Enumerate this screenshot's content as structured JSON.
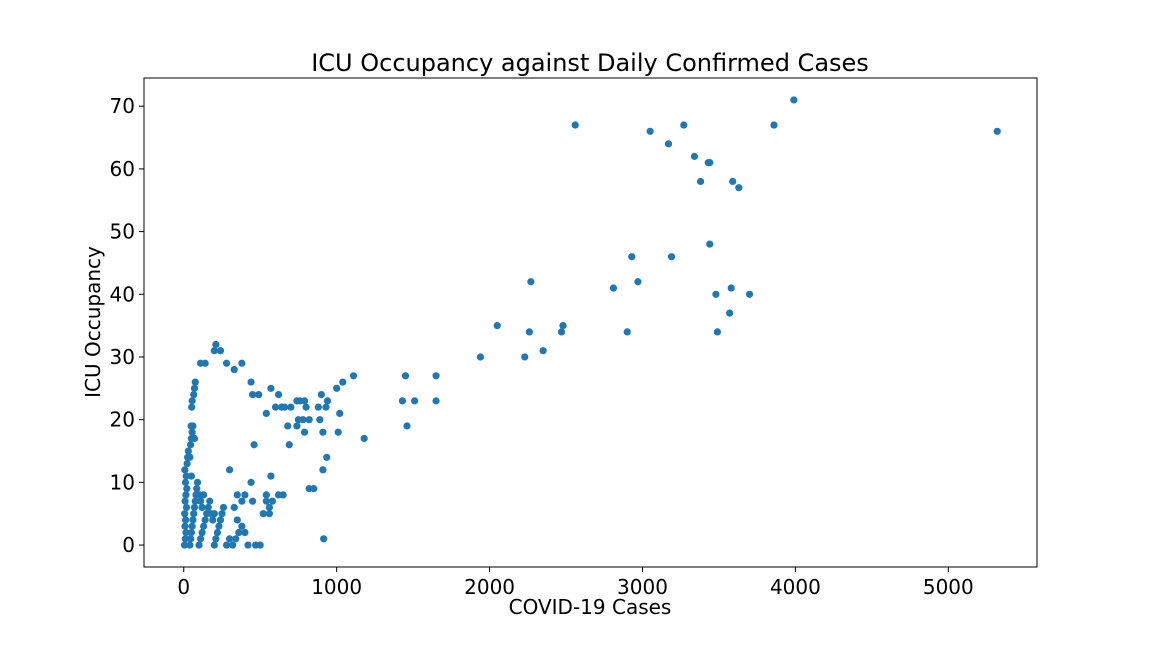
{
  "chart_data": {
    "type": "scatter",
    "title": "ICU Occupancy against Daily Confirmed Cases",
    "xlabel": "COVID-19 Cases",
    "ylabel": "ICU Occupancy",
    "xlim": [
      -260,
      5580
    ],
    "ylim": [
      -3.5,
      74.5
    ],
    "xticks": [
      0,
      1000,
      2000,
      3000,
      4000,
      5000
    ],
    "yticks": [
      0,
      10,
      20,
      30,
      40,
      50,
      60,
      70
    ],
    "grid": false,
    "color": "#1f77b4",
    "points": [
      [
        5,
        0
      ],
      [
        10,
        1
      ],
      [
        15,
        2
      ],
      [
        8,
        3
      ],
      [
        12,
        4
      ],
      [
        6,
        5
      ],
      [
        18,
        6
      ],
      [
        9,
        7
      ],
      [
        14,
        8
      ],
      [
        20,
        9
      ],
      [
        11,
        10
      ],
      [
        16,
        11
      ],
      [
        7,
        12
      ],
      [
        22,
        13
      ],
      [
        25,
        14
      ],
      [
        30,
        15
      ],
      [
        40,
        14
      ],
      [
        45,
        16
      ],
      [
        50,
        17
      ],
      [
        55,
        18
      ],
      [
        48,
        19
      ],
      [
        60,
        19
      ],
      [
        70,
        17
      ],
      [
        52,
        22
      ],
      [
        55,
        23
      ],
      [
        65,
        24
      ],
      [
        70,
        25
      ],
      [
        75,
        26
      ],
      [
        40,
        0
      ],
      [
        45,
        1
      ],
      [
        50,
        2
      ],
      [
        55,
        3
      ],
      [
        60,
        4
      ],
      [
        65,
        5
      ],
      [
        70,
        6
      ],
      [
        75,
        7
      ],
      [
        80,
        8
      ],
      [
        85,
        9
      ],
      [
        90,
        10
      ],
      [
        50,
        11
      ],
      [
        100,
        0
      ],
      [
        110,
        1
      ],
      [
        120,
        2
      ],
      [
        130,
        3
      ],
      [
        140,
        4
      ],
      [
        150,
        5
      ],
      [
        160,
        6
      ],
      [
        170,
        7
      ],
      [
        100,
        8
      ],
      [
        110,
        7
      ],
      [
        120,
        6
      ],
      [
        130,
        8
      ],
      [
        200,
        0
      ],
      [
        210,
        1
      ],
      [
        220,
        2
      ],
      [
        230,
        3
      ],
      [
        240,
        4
      ],
      [
        250,
        5
      ],
      [
        260,
        6
      ],
      [
        200,
        5
      ],
      [
        180,
        5
      ],
      [
        190,
        4
      ],
      [
        280,
        0
      ],
      [
        300,
        1
      ],
      [
        320,
        0
      ],
      [
        340,
        1
      ],
      [
        360,
        2
      ],
      [
        330,
        6
      ],
      [
        350,
        4
      ],
      [
        380,
        3
      ],
      [
        400,
        2
      ],
      [
        420,
        0
      ],
      [
        350,
        8
      ],
      [
        380,
        7
      ],
      [
        400,
        8
      ],
      [
        450,
        7
      ],
      [
        470,
        0
      ],
      [
        500,
        0
      ],
      [
        520,
        5
      ],
      [
        540,
        8
      ],
      [
        560,
        6
      ],
      [
        580,
        7
      ],
      [
        620,
        8
      ],
      [
        650,
        8
      ],
      [
        540,
        7
      ],
      [
        560,
        5
      ],
      [
        300,
        12
      ],
      [
        440,
        10
      ],
      [
        570,
        11
      ],
      [
        440,
        26
      ],
      [
        450,
        24
      ],
      [
        490,
        24
      ],
      [
        540,
        21
      ],
      [
        570,
        25
      ],
      [
        600,
        22
      ],
      [
        620,
        24
      ],
      [
        640,
        22
      ],
      [
        660,
        22
      ],
      [
        700,
        22
      ],
      [
        460,
        16
      ],
      [
        690,
        16
      ],
      [
        680,
        19
      ],
      [
        740,
        19
      ],
      [
        750,
        20
      ],
      [
        780,
        20
      ],
      [
        790,
        18
      ],
      [
        800,
        22
      ],
      [
        740,
        23
      ],
      [
        760,
        23
      ],
      [
        790,
        23
      ],
      [
        820,
        20
      ],
      [
        820,
        9
      ],
      [
        850,
        9
      ],
      [
        880,
        22
      ],
      [
        890,
        20
      ],
      [
        900,
        24
      ],
      [
        910,
        18
      ],
      [
        930,
        22
      ],
      [
        940,
        23
      ],
      [
        935,
        14
      ],
      [
        910,
        12
      ],
      [
        915,
        1
      ],
      [
        1000,
        25
      ],
      [
        1010,
        18
      ],
      [
        1020,
        21
      ],
      [
        1040,
        26
      ],
      [
        1110,
        27
      ],
      [
        1180,
        17
      ],
      [
        110,
        29
      ],
      [
        140,
        29
      ],
      [
        200,
        31
      ],
      [
        210,
        32
      ],
      [
        240,
        31
      ],
      [
        280,
        29
      ],
      [
        330,
        28
      ],
      [
        380,
        29
      ],
      [
        1430,
        23
      ],
      [
        1450,
        27
      ],
      [
        1460,
        19
      ],
      [
        1510,
        23
      ],
      [
        1650,
        27
      ],
      [
        1650,
        23
      ],
      [
        1940,
        30
      ],
      [
        2050,
        35
      ],
      [
        2230,
        30
      ],
      [
        2260,
        34
      ],
      [
        2270,
        42
      ],
      [
        2350,
        31
      ],
      [
        2470,
        34
      ],
      [
        2480,
        35
      ],
      [
        2560,
        67
      ],
      [
        2810,
        41
      ],
      [
        2900,
        34
      ],
      [
        2930,
        46
      ],
      [
        2970,
        42
      ],
      [
        3050,
        66
      ],
      [
        3170,
        64
      ],
      [
        3190,
        46
      ],
      [
        3270,
        67
      ],
      [
        3340,
        62
      ],
      [
        3380,
        58
      ],
      [
        3430,
        61
      ],
      [
        3440,
        61
      ],
      [
        3440,
        48
      ],
      [
        3480,
        40
      ],
      [
        3490,
        34
      ],
      [
        3570,
        37
      ],
      [
        3580,
        41
      ],
      [
        3590,
        58
      ],
      [
        3630,
        57
      ],
      [
        3700,
        40
      ],
      [
        3860,
        67
      ],
      [
        3990,
        71
      ],
      [
        5320,
        66
      ]
    ]
  }
}
